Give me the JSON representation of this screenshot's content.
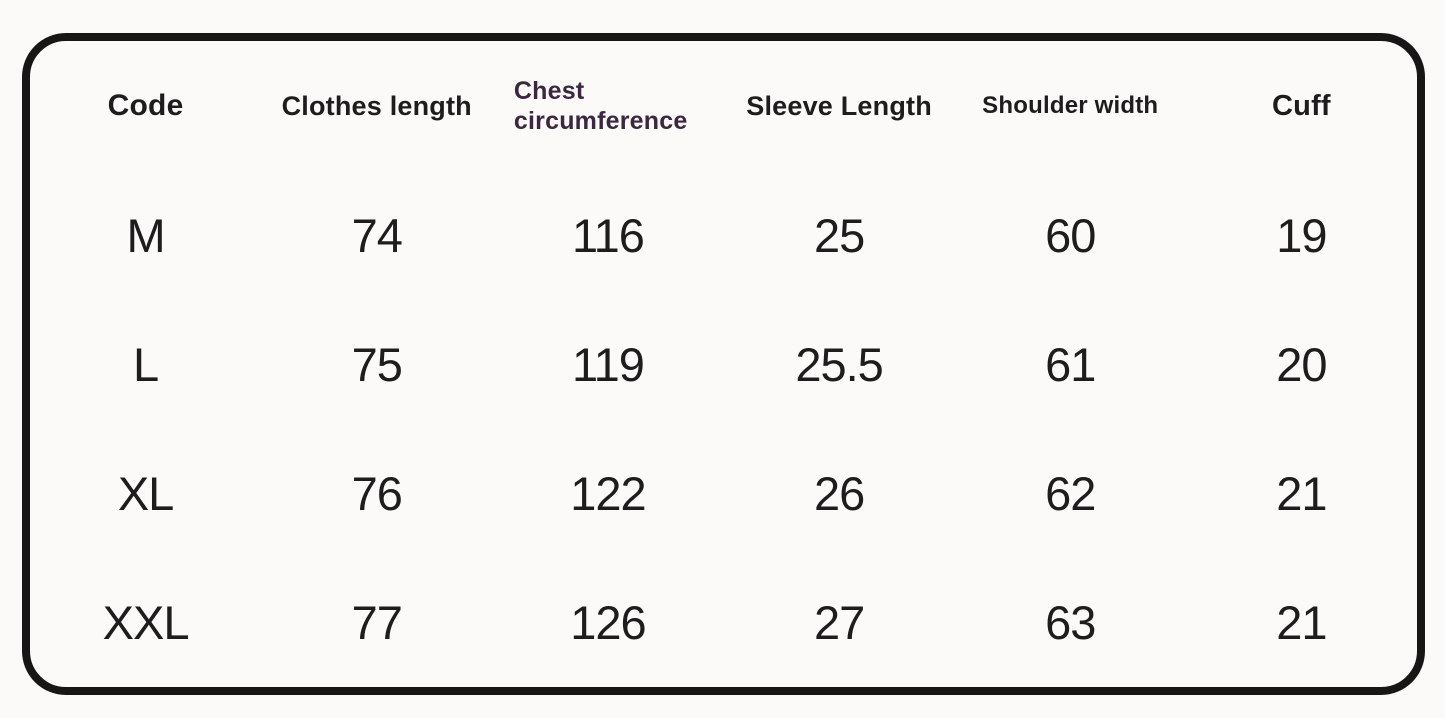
{
  "styles": {
    "background": "#fbfaf8",
    "border_color": "#161616",
    "text_color": "#1d1d1d",
    "chest_header_color": "#3b2740"
  },
  "chart_data": {
    "type": "table",
    "columns": [
      "Code",
      "Clothes length",
      "Chest circumference",
      "Sleeve Length",
      "Shoulder width",
      "Cuff"
    ],
    "rows": [
      [
        "M",
        "74",
        "116",
        "25",
        "60",
        "19"
      ],
      [
        "L",
        "75",
        "119",
        "25.5",
        "61",
        "20"
      ],
      [
        "XL",
        "76",
        "122",
        "26",
        "62",
        "21"
      ],
      [
        "XXL",
        "77",
        "126",
        "27",
        "63",
        "21"
      ]
    ],
    "layout": {
      "grid": "off",
      "border": "rounded-black-outline",
      "header_row": true
    }
  }
}
